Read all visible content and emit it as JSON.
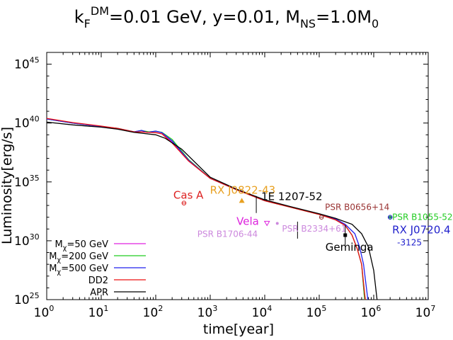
{
  "chart_data": {
    "type": "line",
    "title": {
      "base1": "k",
      "sub1": "F",
      "sup1": "DM",
      "mid": "=0.01 GeV, y=0.01, M",
      "sub2": "NS",
      "end": "=1.0M",
      "sub3": "0"
    },
    "xlabel": "time[year]",
    "ylabel": "Luminosity[erg/s]",
    "xscale": "log",
    "yscale": "log",
    "xlim": [
      1,
      10000000
    ],
    "ylim": [
      1e+25,
      1e+46
    ],
    "xticks": [
      {
        "base": "10",
        "exp": "0",
        "value": 1
      },
      {
        "base": "10",
        "exp": "1",
        "value": 10
      },
      {
        "base": "10",
        "exp": "2",
        "value": 100
      },
      {
        "base": "10",
        "exp": "3",
        "value": 1000
      },
      {
        "base": "10",
        "exp": "4",
        "value": 10000
      },
      {
        "base": "10",
        "exp": "5",
        "value": 100000
      },
      {
        "base": "10",
        "exp": "6",
        "value": 1000000
      },
      {
        "base": "10",
        "exp": "7",
        "value": 10000000
      }
    ],
    "yticks": [
      {
        "base": "10",
        "exp": "25",
        "value": 1e+25
      },
      {
        "base": "10",
        "exp": "30",
        "value": 1e+30
      },
      {
        "base": "10",
        "exp": "35",
        "value": 1e+35
      },
      {
        "base": "10",
        "exp": "40",
        "value": 1e+40
      },
      {
        "base": "10",
        "exp": "45",
        "value": 1e+45
      }
    ],
    "grid": false,
    "legend_position": "bottom-left",
    "series": [
      {
        "name": "M",
        "legend": {
          "pre": "M",
          "sub": "χ",
          "post": "=50 GeV"
        },
        "color": "#e020e0",
        "points": [
          [
            1,
            2.2e+40
          ],
          [
            3,
            1e+40
          ],
          [
            10,
            5e+39
          ],
          [
            20,
            3.5e+39
          ],
          [
            40,
            1.8e+39
          ],
          [
            55,
            2.2e+39
          ],
          [
            70,
            1.6e+39
          ],
          [
            100,
            1.9e+39
          ],
          [
            130,
            1.5e+39
          ],
          [
            200,
            2.5e+38
          ],
          [
            400,
            6e+36
          ],
          [
            1000,
            2e+35
          ],
          [
            3000,
            2.2e+34
          ],
          [
            10000,
            2.5e+33
          ],
          [
            30000,
            7e+32
          ],
          [
            100000,
            1.7e+32
          ],
          [
            200000,
            6e+31
          ],
          [
            300000,
            2e+31
          ],
          [
            400000,
            3e+30
          ],
          [
            500000,
            2e+29
          ],
          [
            600000,
            1e+28
          ],
          [
            680000,
            1e+25
          ]
        ]
      },
      {
        "name": "M",
        "legend": {
          "pre": "M",
          "sub": "χ",
          "post": "=200 GeV"
        },
        "color": "#22cc22",
        "points": [
          [
            1,
            2.2e+40
          ],
          [
            3,
            1e+40
          ],
          [
            10,
            5e+39
          ],
          [
            20,
            3.6e+39
          ],
          [
            40,
            1.8e+39
          ],
          [
            55,
            2.3e+39
          ],
          [
            75,
            1.8e+39
          ],
          [
            100,
            2e+39
          ],
          [
            130,
            1.6e+39
          ],
          [
            200,
            4e+38
          ],
          [
            400,
            8e+36
          ],
          [
            1000,
            2e+35
          ],
          [
            3000,
            2.2e+34
          ],
          [
            10000,
            2.5e+33
          ],
          [
            30000,
            7e+32
          ],
          [
            100000,
            1.7e+32
          ],
          [
            200000,
            6e+31
          ],
          [
            300000,
            2e+31
          ],
          [
            400000,
            3e+30
          ],
          [
            500000,
            2e+29
          ],
          [
            600000,
            1e+28
          ],
          [
            680000,
            1e+25
          ]
        ]
      },
      {
        "name": "M",
        "legend": {
          "pre": "M",
          "sub": "χ",
          "post": "=500 GeV"
        },
        "color": "#2222ee",
        "points": [
          [
            1,
            2.2e+40
          ],
          [
            3,
            1e+40
          ],
          [
            10,
            5e+39
          ],
          [
            20,
            3.5e+39
          ],
          [
            40,
            1.8e+39
          ],
          [
            55,
            2.4e+39
          ],
          [
            70,
            1.6e+39
          ],
          [
            100,
            2.1e+39
          ],
          [
            130,
            1.5e+39
          ],
          [
            200,
            3e+38
          ],
          [
            400,
            7e+36
          ],
          [
            1000,
            2e+35
          ],
          [
            3000,
            2.2e+34
          ],
          [
            10000,
            2.6e+33
          ],
          [
            30000,
            7.5e+32
          ],
          [
            100000,
            1.8e+32
          ],
          [
            200000,
            7e+31
          ],
          [
            300000,
            2.5e+31
          ],
          [
            450000,
            4e+30
          ],
          [
            550000,
            3e+29
          ],
          [
            650000,
            1e+28
          ],
          [
            780000,
            1e+25
          ]
        ]
      },
      {
        "name": "DD2",
        "legend": {
          "pre": "DD2",
          "sub": "",
          "post": ""
        },
        "color": "#ee1111",
        "points": [
          [
            1,
            2.5e+40
          ],
          [
            3,
            1.1e+40
          ],
          [
            10,
            5.5e+39
          ],
          [
            20,
            3.5e+39
          ],
          [
            40,
            1.8e+39
          ],
          [
            60,
            1.7e+39
          ],
          [
            100,
            1.5e+39
          ],
          [
            130,
            1.2e+39
          ],
          [
            200,
            2e+38
          ],
          [
            400,
            6e+36
          ],
          [
            1000,
            2e+35
          ],
          [
            3000,
            2.2e+34
          ],
          [
            10000,
            2.5e+33
          ],
          [
            30000,
            7e+32
          ],
          [
            100000,
            1.7e+32
          ],
          [
            200000,
            6e+31
          ],
          [
            300000,
            2e+31
          ],
          [
            400000,
            3e+30
          ],
          [
            500000,
            2e+29
          ],
          [
            600000,
            1e+28
          ],
          [
            700000,
            1e+25
          ]
        ]
      },
      {
        "name": "APR",
        "legend": {
          "pre": "APR",
          "sub": "",
          "post": ""
        },
        "color": "#000000",
        "points": [
          [
            1,
            1.2e+40
          ],
          [
            3,
            7e+39
          ],
          [
            10,
            4.5e+39
          ],
          [
            20,
            3e+39
          ],
          [
            40,
            1.6e+39
          ],
          [
            60,
            1.3e+39
          ],
          [
            100,
            1e+39
          ],
          [
            150,
            5e+38
          ],
          [
            300,
            6e+37
          ],
          [
            1000,
            2.5e+35
          ],
          [
            3000,
            2.5e+34
          ],
          [
            10000,
            3e+33
          ],
          [
            30000,
            8e+32
          ],
          [
            100000,
            2e+32
          ],
          [
            200000,
            8e+31
          ],
          [
            400000,
            2.5e+31
          ],
          [
            600000,
            4e+30
          ],
          [
            800000,
            3e+29
          ],
          [
            1000000,
            3e+27
          ],
          [
            1150000,
            1e+25
          ]
        ]
      }
    ],
    "pulsars": [
      {
        "name": "Cas A",
        "x": 330,
        "y": 1.6e+33,
        "color": "#dd2222",
        "marker": "circle",
        "label_dx": -15,
        "label_dy": -6,
        "anchor": "start"
      },
      {
        "name": "RX J0822-43",
        "x": 3800,
        "y": 2.5e+33,
        "color": "#e8a020",
        "marker": "triangle",
        "label_dx": -45,
        "label_dy": -10,
        "anchor": "start"
      },
      {
        "name": "1E 1207-52",
        "x": 7000,
        "y": 1.2e+33,
        "color": "#000000",
        "marker": "errorbar",
        "label_dx": 7,
        "label_dy": -6,
        "anchor": "start"
      },
      {
        "name": "Vela",
        "x": 11000,
        "y": 3e+31,
        "color": "#dd22dd",
        "marker": "triangle-down",
        "label_dx": -43,
        "label_dy": 2,
        "anchor": "start"
      },
      {
        "name": "PSR B1706-44",
        "x": 17000,
        "y": 3e+31,
        "color": "#cc88dd",
        "marker": "circle-small",
        "label_dx": -113,
        "label_dy": 19,
        "anchor": "start"
      },
      {
        "name": "PSR B2334+61",
        "x": 40000,
        "y": 8e+30,
        "color": "#cc88dd",
        "marker": "errorbar",
        "label_dx": -22,
        "label_dy": 2,
        "anchor": "start"
      },
      {
        "name": "PSR B0656+14",
        "x": 110000,
        "y": 1e+32,
        "color": "#993333",
        "marker": "circle",
        "label_dx": 5,
        "label_dy": -10,
        "anchor": "start"
      },
      {
        "name": "Geminga",
        "x": 300000,
        "y": 3e+30,
        "color": "#000000",
        "marker": "square",
        "label_dx": -28,
        "label_dy": 22,
        "anchor": "start"
      },
      {
        "name": "PSR B1055-52",
        "x": 2000000,
        "y": 1e+32,
        "color": "#22cc22",
        "marker": "circle-small",
        "label_dx": 3,
        "label_dy": 4,
        "anchor": "start"
      },
      {
        "name": "RX J0720.4",
        "x": 2000000,
        "y": 1e+32,
        "color": "#2222cc",
        "marker": "circle",
        "label_dx": 3,
        "label_dy": 23,
        "anchor": "start"
      },
      {
        "name": "-3125",
        "x": 2000000,
        "y": 1e+32,
        "color": "#2222cc",
        "marker": "none",
        "label_dx": 10,
        "label_dy": 40,
        "anchor": "start"
      }
    ]
  }
}
